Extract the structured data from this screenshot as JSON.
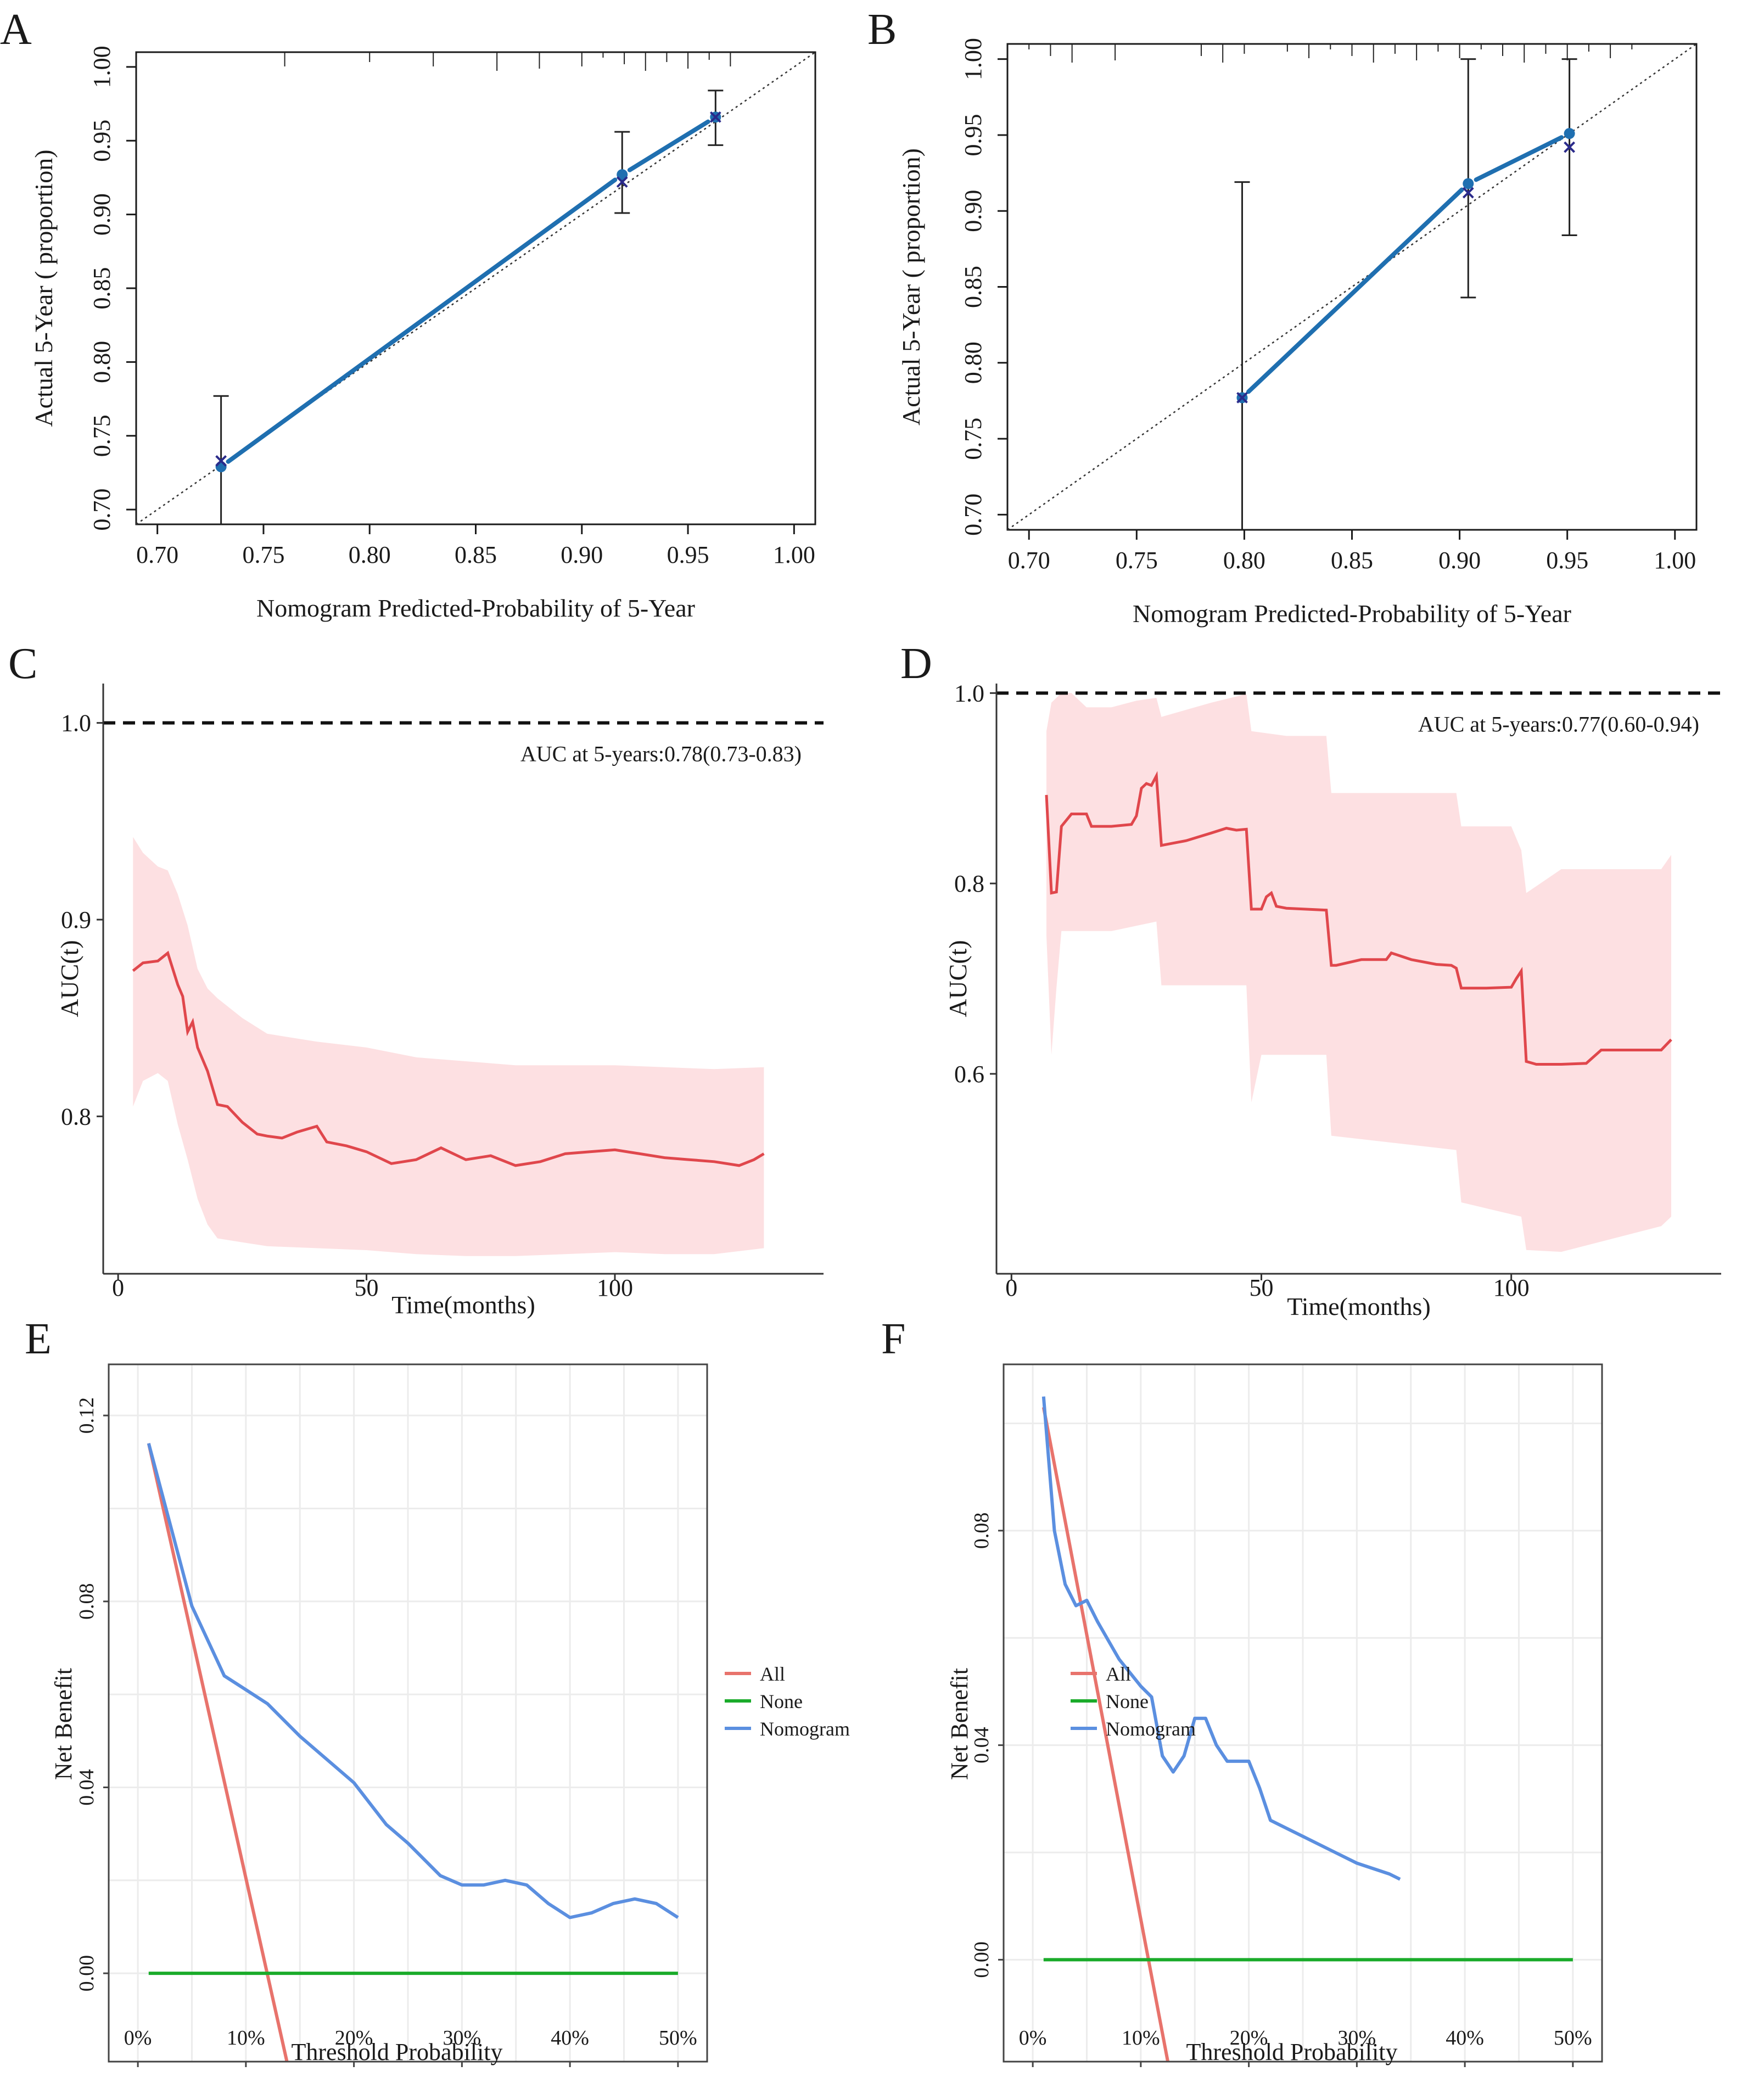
{
  "figure": {
    "panels": [
      "A",
      "B",
      "C",
      "D",
      "E",
      "F"
    ]
  },
  "colors": {
    "calib_line": "#1f6fb0",
    "calib_marker": "#1f6fb0",
    "auc_line": "#e0474c",
    "auc_band": "#fde0e2",
    "dca_all": "#e8736c",
    "dca_none": "#1aab2a",
    "dca_nomogram": "#5b8fe0",
    "grid": "#ececec"
  },
  "chart_data": [
    {
      "panel": "A",
      "type": "line",
      "title": "",
      "xlabel": "Nomogram Predicted-Probability of 5-Year",
      "ylabel": "Actual 5-Year ( proportion)",
      "xlim": [
        0.69,
        1.01
      ],
      "ylim": [
        0.69,
        1.01
      ],
      "xticks": [
        "0.70",
        "0.75",
        "0.80",
        "0.85",
        "0.90",
        "0.95",
        "1.00"
      ],
      "yticks": [
        "0.70",
        "0.75",
        "0.80",
        "0.85",
        "0.90",
        "0.95",
        "1.00"
      ],
      "reference_line": "diagonal",
      "points": [
        {
          "predicted": 0.73,
          "observed": 0.729,
          "ci": [
            0.69,
            0.777
          ],
          "corrected": 0.733
        },
        {
          "predicted": 0.919,
          "observed": 0.927,
          "ci": [
            0.901,
            0.956
          ],
          "corrected": 0.922
        },
        {
          "predicted": 0.963,
          "observed": 0.966,
          "ci": [
            0.947,
            0.984
          ],
          "corrected": 0.966
        }
      ],
      "rug": [
        0.76,
        0.8,
        0.83,
        0.86,
        0.88,
        0.9,
        0.91,
        0.92,
        0.93,
        0.94,
        0.95,
        0.96,
        0.97
      ]
    },
    {
      "panel": "B",
      "type": "line",
      "title": "",
      "xlabel": "Nomogram Predicted-Probability of 5-Year",
      "ylabel": "Actual 5-Year ( proportion)",
      "xlim": [
        0.69,
        1.01
      ],
      "ylim": [
        0.69,
        1.01
      ],
      "xticks": [
        "0.70",
        "0.75",
        "0.80",
        "0.85",
        "0.90",
        "0.95",
        "1.00"
      ],
      "yticks": [
        "0.70",
        "0.75",
        "0.80",
        "0.85",
        "0.90",
        "0.95",
        "1.00"
      ],
      "reference_line": "diagonal",
      "points": [
        {
          "predicted": 0.799,
          "observed": 0.777,
          "ci": [
            0.69,
            0.919
          ],
          "corrected": 0.777
        },
        {
          "predicted": 0.904,
          "observed": 0.918,
          "ci": [
            0.843,
            1.0
          ],
          "corrected": 0.912
        },
        {
          "predicted": 0.951,
          "observed": 0.951,
          "ci": [
            0.884,
            1.0
          ],
          "corrected": 0.942
        }
      ],
      "rug": [
        0.7,
        0.71,
        0.72,
        0.74,
        0.78,
        0.79,
        0.8,
        0.82,
        0.83,
        0.84,
        0.85,
        0.86,
        0.87,
        0.88,
        0.89,
        0.9,
        0.91,
        0.92,
        0.93,
        0.94,
        0.95,
        0.96,
        0.97,
        0.98
      ]
    },
    {
      "panel": "C",
      "type": "line",
      "title": "",
      "xlabel": "Time(months)",
      "ylabel": "AUC(t)",
      "annotation": "AUC at 5-years:0.78(0.73-0.83)",
      "xlim": [
        -3,
        142
      ],
      "ylim": [
        0.72,
        1.02
      ],
      "xticks": [
        "0",
        "50",
        "100"
      ],
      "yticks": [
        "0.8",
        "0.9",
        "1.0"
      ],
      "reference_y": 1.0,
      "series": [
        {
          "name": "AUC",
          "x": [
            3,
            5,
            8,
            10,
            12,
            13,
            14,
            15,
            16,
            18,
            20,
            22,
            25,
            28,
            30,
            33,
            36,
            40,
            42,
            46,
            50,
            55,
            60,
            65,
            70,
            75,
            80,
            85,
            90,
            95,
            100,
            105,
            110,
            115,
            120,
            125,
            128,
            130
          ],
          "values": [
            0.874,
            0.878,
            0.879,
            0.883,
            0.867,
            0.861,
            0.843,
            0.848,
            0.835,
            0.823,
            0.806,
            0.805,
            0.797,
            0.791,
            0.79,
            0.789,
            0.792,
            0.795,
            0.787,
            0.785,
            0.782,
            0.776,
            0.778,
            0.784,
            0.778,
            0.78,
            0.775,
            0.777,
            0.781,
            0.782,
            0.783,
            0.781,
            0.779,
            0.778,
            0.777,
            0.775,
            0.778,
            0.781
          ]
        },
        {
          "name": "lower",
          "x": [
            3,
            5,
            8,
            10,
            12,
            14,
            16,
            18,
            20,
            25,
            30,
            40,
            50,
            60,
            70,
            80,
            90,
            100,
            110,
            120,
            130
          ],
          "values": [
            0.805,
            0.818,
            0.822,
            0.818,
            0.796,
            0.778,
            0.758,
            0.745,
            0.738,
            0.736,
            0.734,
            0.733,
            0.732,
            0.73,
            0.729,
            0.729,
            0.73,
            0.731,
            0.73,
            0.73,
            0.733
          ]
        },
        {
          "name": "upper",
          "x": [
            3,
            5,
            8,
            10,
            12,
            14,
            16,
            18,
            20,
            25,
            30,
            40,
            50,
            60,
            70,
            80,
            90,
            100,
            110,
            120,
            130
          ],
          "values": [
            0.942,
            0.934,
            0.927,
            0.925,
            0.913,
            0.897,
            0.875,
            0.865,
            0.86,
            0.85,
            0.842,
            0.838,
            0.835,
            0.83,
            0.828,
            0.826,
            0.826,
            0.826,
            0.825,
            0.824,
            0.825
          ]
        }
      ]
    },
    {
      "panel": "D",
      "type": "line",
      "title": "",
      "xlabel": "Time(months)",
      "ylabel": "AUC(t)",
      "annotation": "AUC at 5-years:0.77(0.60-0.94)",
      "xlim": [
        -3,
        142
      ],
      "ylim": [
        0.39,
        1.01
      ],
      "xticks": [
        "0",
        "50",
        "100"
      ],
      "yticks": [
        "0.6",
        "0.8",
        "1.0"
      ],
      "reference_y": 1.0,
      "series": [
        {
          "name": "AUC",
          "x": [
            7,
            8,
            9,
            10,
            12,
            15,
            16,
            20,
            24,
            25,
            26,
            27,
            28,
            29,
            30,
            33,
            35,
            40,
            43,
            45,
            47,
            48,
            50,
            51,
            52,
            53,
            55,
            63,
            64,
            65,
            70,
            75,
            76,
            80,
            85,
            88,
            89,
            90,
            95,
            100,
            101,
            102,
            103,
            105,
            110,
            115,
            118,
            120,
            125,
            130,
            132
          ],
          "values": [
            0.893,
            0.79,
            0.791,
            0.86,
            0.873,
            0.873,
            0.86,
            0.86,
            0.862,
            0.871,
            0.9,
            0.905,
            0.903,
            0.913,
            0.84,
            0.843,
            0.845,
            0.853,
            0.858,
            0.856,
            0.857,
            0.773,
            0.773,
            0.786,
            0.79,
            0.776,
            0.774,
            0.772,
            0.714,
            0.714,
            0.72,
            0.72,
            0.727,
            0.72,
            0.715,
            0.714,
            0.711,
            0.69,
            0.69,
            0.691,
            0.7,
            0.708,
            0.613,
            0.61,
            0.61,
            0.611,
            0.625,
            0.625,
            0.625,
            0.625,
            0.636
          ]
        },
        {
          "name": "lower",
          "x": [
            7,
            8,
            9,
            10,
            12,
            20,
            29,
            30,
            47,
            48,
            50,
            63,
            64,
            89,
            90,
            102,
            103,
            110,
            130,
            132
          ],
          "values": [
            0.745,
            0.62,
            0.69,
            0.75,
            0.75,
            0.75,
            0.76,
            0.693,
            0.693,
            0.57,
            0.62,
            0.62,
            0.535,
            0.52,
            0.465,
            0.45,
            0.415,
            0.413,
            0.44,
            0.45
          ]
        },
        {
          "name": "upper",
          "x": [
            7,
            8,
            10,
            12,
            15,
            20,
            25,
            29,
            30,
            40,
            47,
            48,
            55,
            63,
            64,
            89,
            90,
            100,
            102,
            103,
            110,
            130,
            132
          ],
          "values": [
            0.96,
            0.99,
            1.0,
            1.0,
            0.985,
            0.985,
            0.992,
            0.995,
            0.975,
            0.99,
            0.999,
            0.96,
            0.955,
            0.955,
            0.895,
            0.895,
            0.86,
            0.86,
            0.835,
            0.79,
            0.815,
            0.815,
            0.83
          ]
        }
      ]
    },
    {
      "panel": "E",
      "type": "line",
      "title": "",
      "xlabel": "Threshold Probability",
      "ylabel": "Net Benefit",
      "xlim": [
        -0.027,
        0.527
      ],
      "ylim": [
        -0.019,
        0.131
      ],
      "xticks": [
        "0%",
        "10%",
        "20%",
        "30%",
        "40%",
        "50%"
      ],
      "yticks": [
        "0.00",
        "0.04",
        "0.08",
        "0.12"
      ],
      "legend_position": "right",
      "legend": [
        "All",
        "None",
        "Nomogram"
      ],
      "series": [
        {
          "name": "All",
          "x": [
            0.01,
            0.138
          ],
          "values": [
            0.114,
            -0.019
          ]
        },
        {
          "name": "None",
          "x": [
            0.01,
            0.5
          ],
          "values": [
            0.0,
            0.0
          ]
        },
        {
          "name": "Nomogram",
          "x": [
            0.01,
            0.05,
            0.08,
            0.1,
            0.12,
            0.15,
            0.18,
            0.2,
            0.23,
            0.25,
            0.28,
            0.3,
            0.32,
            0.34,
            0.36,
            0.38,
            0.4,
            0.42,
            0.44,
            0.46,
            0.48,
            0.5
          ],
          "values": [
            0.114,
            0.079,
            0.064,
            0.061,
            0.058,
            0.051,
            0.045,
            0.041,
            0.032,
            0.028,
            0.021,
            0.019,
            0.019,
            0.02,
            0.019,
            0.015,
            0.012,
            0.013,
            0.015,
            0.016,
            0.015,
            0.012
          ]
        }
      ]
    },
    {
      "panel": "F",
      "type": "line",
      "title": "",
      "xlabel": "Threshold Probability",
      "ylabel": "Net Benefit",
      "xlim": [
        -0.027,
        0.527
      ],
      "ylim": [
        -0.019,
        0.111
      ],
      "xticks": [
        "0%",
        "10%",
        "20%",
        "30%",
        "40%",
        "50%"
      ],
      "yticks": [
        "0.00",
        "0.04",
        "0.08"
      ],
      "legend_position": "right",
      "legend": [
        "All",
        "None",
        "Nomogram"
      ],
      "series": [
        {
          "name": "All",
          "x": [
            0.01,
            0.125
          ],
          "values": [
            0.103,
            -0.019
          ]
        },
        {
          "name": "None",
          "x": [
            0.01,
            0.5
          ],
          "values": [
            0.0,
            0.0
          ]
        },
        {
          "name": "Nomogram",
          "x": [
            0.01,
            0.02,
            0.03,
            0.04,
            0.05,
            0.06,
            0.08,
            0.1,
            0.11,
            0.12,
            0.13,
            0.14,
            0.15,
            0.16,
            0.17,
            0.18,
            0.19,
            0.2,
            0.21,
            0.22,
            0.23,
            0.25,
            0.28,
            0.3,
            0.33,
            0.34
          ],
          "values": [
            0.105,
            0.08,
            0.07,
            0.066,
            0.067,
            0.063,
            0.056,
            0.051,
            0.049,
            0.038,
            0.035,
            0.038,
            0.045,
            0.045,
            0.04,
            0.037,
            0.037,
            0.037,
            0.032,
            0.026,
            0.025,
            0.023,
            0.02,
            0.018,
            0.016,
            0.015
          ]
        }
      ]
    }
  ]
}
